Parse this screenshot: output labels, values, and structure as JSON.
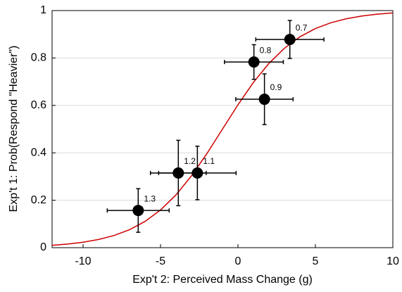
{
  "chart_data": {
    "type": "scatter",
    "xlabel": "Exp't 2: Perceived Mass Change (g)",
    "ylabel": "Exp't 1: Prob(Respond \"Heavier\")",
    "xlim": [
      -12,
      10
    ],
    "ylim": [
      0,
      1
    ],
    "xticks": [
      -10,
      -5,
      0,
      5,
      10
    ],
    "yticks": [
      0,
      0.2,
      0.4,
      0.6,
      0.8,
      1
    ],
    "grid": true,
    "points": {
      "color": "#000000",
      "labels": [
        "1.3",
        "1.2",
        "1.1",
        "0.8",
        "0.9",
        "0.7"
      ],
      "x": [
        -6.44,
        -3.85,
        -2.62,
        1.03,
        1.71,
        3.35
      ],
      "y": [
        0.157,
        0.315,
        0.315,
        0.783,
        0.626,
        0.878
      ],
      "xerr": [
        2.0,
        1.8,
        2.5,
        1.9,
        1.85,
        2.2
      ],
      "yerr": [
        0.092,
        0.138,
        0.113,
        0.073,
        0.107,
        0.08
      ]
    },
    "curve": {
      "color": "#cc0000",
      "x": [
        -12,
        -11,
        -10,
        -9,
        -8,
        -7,
        -6,
        -5,
        -4,
        -3,
        -2,
        -1,
        0,
        1,
        2,
        3,
        4,
        5,
        6,
        7,
        8,
        9,
        10
      ],
      "y": [
        0.0101,
        0.0153,
        0.023,
        0.0345,
        0.0513,
        0.0759,
        0.1107,
        0.1589,
        0.2227,
        0.3029,
        0.3973,
        0.5,
        0.6027,
        0.6971,
        0.7773,
        0.8411,
        0.8893,
        0.9241,
        0.9487,
        0.9655,
        0.977,
        0.9847,
        0.9899
      ]
    }
  }
}
